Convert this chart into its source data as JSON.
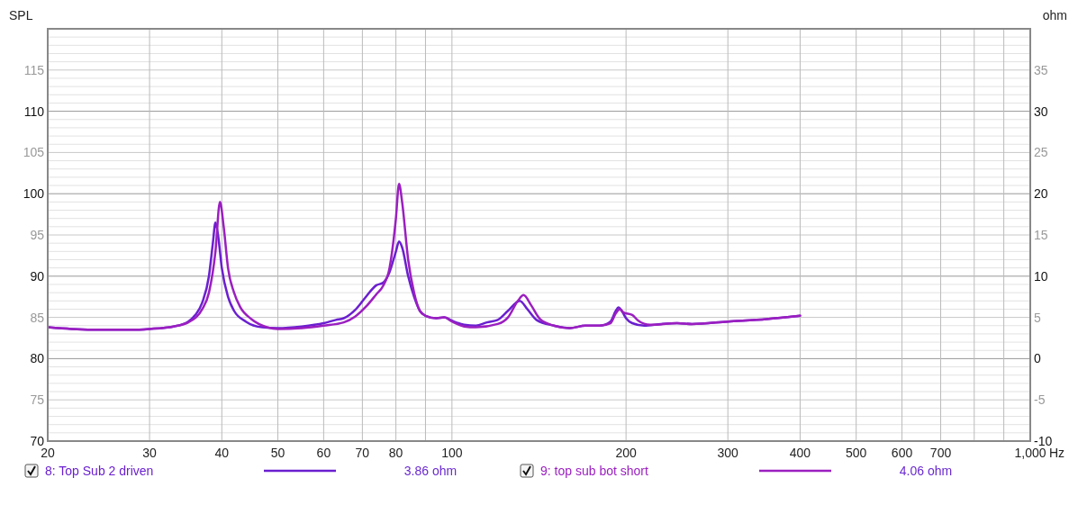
{
  "chart_data": {
    "type": "line",
    "ylabel": "SPL",
    "y2label": "ohm",
    "xlabel": "Hz",
    "log": "x",
    "xlim": [
      20,
      1000
    ],
    "xticks": [
      20,
      30,
      40,
      50,
      60,
      70,
      80,
      {
        "value": 90,
        "label": null
      },
      100,
      200,
      300,
      400,
      500,
      600,
      700,
      {
        "value": 800,
        "label": null
      },
      {
        "value": 900,
        "label": null
      },
      {
        "value": 1000,
        "label": "1,000"
      }
    ],
    "ylim": [
      70,
      120
    ],
    "yticks": [
      70,
      75,
      80,
      85,
      90,
      95,
      100,
      105,
      110,
      115
    ],
    "y2lim": [
      -10,
      40
    ],
    "y2ticks": [
      -10,
      -5,
      0,
      5,
      10,
      15,
      20,
      25,
      30,
      35
    ],
    "grid": true,
    "legend": "bottom",
    "annotations": [
      "3.86 ohm",
      "4.06 ohm"
    ],
    "series": [
      {
        "name": "8: Top Sub 2 driven",
        "color": "#6a1fd0",
        "axis": "y2",
        "x": [
          20,
          22,
          25,
          28,
          30,
          33,
          35,
          36,
          37,
          38,
          38.6,
          39,
          39.4,
          40,
          41,
          42,
          44,
          47,
          50,
          55,
          60,
          63,
          65,
          68,
          71,
          74,
          76,
          78,
          80,
          81,
          82,
          84,
          86,
          88,
          90,
          94,
          97,
          100,
          105,
          110,
          115,
          120,
          125,
          131,
          135,
          140,
          150,
          160,
          170,
          180,
          188,
          192,
          194,
          197,
          200,
          205,
          215,
          230,
          245,
          260,
          300,
          350,
          400
        ],
        "values": [
          3.8,
          3.6,
          3.5,
          3.5,
          3.6,
          3.9,
          4.5,
          5.3,
          6.8,
          10,
          14,
          16.5,
          15,
          11,
          7.5,
          5.8,
          4.5,
          3.8,
          3.7,
          3.9,
          4.3,
          4.7,
          4.9,
          5.9,
          7.5,
          8.9,
          9.2,
          10.5,
          13,
          14.2,
          13.5,
          10,
          7.5,
          5.8,
          5.2,
          4.9,
          5,
          4.6,
          4.1,
          4,
          4.4,
          4.7,
          5.8,
          7,
          6,
          4.7,
          4,
          3.7,
          4,
          4,
          4.5,
          5.8,
          6.2,
          5.7,
          4.9,
          4.3,
          4,
          4.2,
          4.3,
          4.2,
          4.5,
          4.8,
          5.2
        ]
      },
      {
        "name": "9: top sub bot short",
        "color": "#9b1fc0",
        "axis": "y2",
        "x": [
          20,
          22,
          25,
          28,
          30,
          33,
          35,
          37,
          38,
          39,
          39.7,
          40.3,
          41,
          42,
          43,
          45,
          48,
          50,
          55,
          60,
          65,
          68,
          71,
          74,
          76,
          78,
          80,
          81,
          82,
          84,
          86,
          88,
          90,
          94,
          97,
          100,
          105,
          110,
          120,
          125,
          130,
          133,
          137,
          142,
          150,
          160,
          170,
          180,
          188,
          192,
          195,
          198,
          205,
          210,
          220,
          245,
          260,
          300,
          350,
          400
        ],
        "values": [
          3.8,
          3.6,
          3.5,
          3.5,
          3.6,
          3.9,
          4.4,
          6,
          8,
          13,
          19,
          16,
          11,
          8,
          6.3,
          4.8,
          3.8,
          3.6,
          3.7,
          4,
          4.4,
          5.1,
          6.3,
          7.8,
          8.8,
          11,
          17,
          21.2,
          19,
          12,
          8,
          5.8,
          5.2,
          4.9,
          5,
          4.5,
          3.9,
          3.8,
          4.2,
          5,
          7,
          7.7,
          6.5,
          4.8,
          4,
          3.7,
          4,
          4,
          4.3,
          5.5,
          6,
          5.6,
          5.3,
          4.6,
          4.1,
          4.3,
          4.2,
          4.5,
          4.8,
          5.2
        ]
      }
    ]
  }
}
